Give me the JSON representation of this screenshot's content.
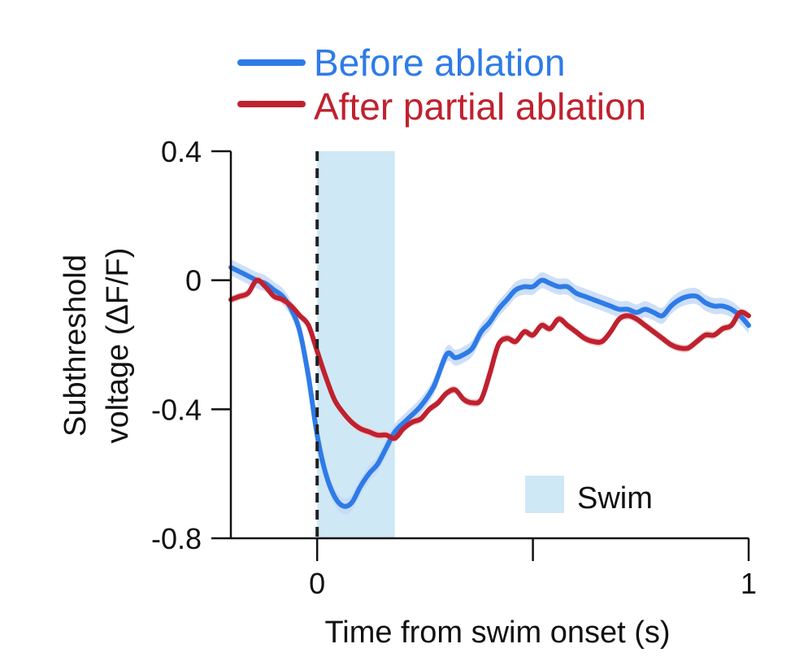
{
  "chart_data": {
    "type": "line",
    "xlabel": "Time from swim onset (s)",
    "ylabel_line1": "Subthreshold",
    "ylabel_line2": "voltage (ΔF/F)",
    "xlim": [
      -0.2,
      1.0
    ],
    "ylim": [
      -0.8,
      0.4
    ],
    "x_ticks": [
      0,
      0.5,
      1
    ],
    "x_tick_labels": [
      "0",
      "",
      "1"
    ],
    "y_ticks": [
      0.4,
      0,
      -0.4,
      -0.8
    ],
    "y_tick_labels": [
      "0.4",
      "0",
      "-0.4",
      "-0.8"
    ],
    "onset_marker_x": 0,
    "swim_window": [
      0,
      0.18
    ],
    "swim_label": "Swim",
    "swim_color": "#cfe8f5",
    "series": [
      {
        "name": "Before ablation",
        "color": "#2e7be8",
        "band_color": "#c6d9f7",
        "x": [
          -0.2,
          -0.17,
          -0.14,
          -0.12,
          -0.1,
          -0.08,
          -0.06,
          -0.04,
          -0.02,
          0.0,
          0.02,
          0.04,
          0.06,
          0.08,
          0.1,
          0.12,
          0.14,
          0.16,
          0.18,
          0.21,
          0.24,
          0.27,
          0.3,
          0.32,
          0.34,
          0.36,
          0.38,
          0.4,
          0.42,
          0.44,
          0.46,
          0.48,
          0.5,
          0.52,
          0.54,
          0.56,
          0.58,
          0.6,
          0.62,
          0.64,
          0.66,
          0.68,
          0.7,
          0.72,
          0.74,
          0.76,
          0.78,
          0.8,
          0.82,
          0.84,
          0.86,
          0.88,
          0.9,
          0.92,
          0.94,
          0.96,
          0.98,
          1.0
        ],
        "y": [
          0.04,
          0.02,
          0.0,
          -0.01,
          -0.03,
          -0.05,
          -0.09,
          -0.16,
          -0.3,
          -0.48,
          -0.6,
          -0.67,
          -0.7,
          -0.69,
          -0.64,
          -0.6,
          -0.57,
          -0.52,
          -0.47,
          -0.43,
          -0.39,
          -0.33,
          -0.23,
          -0.24,
          -0.23,
          -0.21,
          -0.16,
          -0.13,
          -0.09,
          -0.06,
          -0.03,
          -0.02,
          -0.02,
          0.0,
          -0.01,
          -0.02,
          -0.02,
          -0.04,
          -0.05,
          -0.06,
          -0.07,
          -0.08,
          -0.09,
          -0.09,
          -0.1,
          -0.09,
          -0.1,
          -0.11,
          -0.08,
          -0.06,
          -0.05,
          -0.05,
          -0.07,
          -0.08,
          -0.08,
          -0.09,
          -0.11,
          -0.14
        ],
        "band_halfwidth": 0.025
      },
      {
        "name": "After partial ablation",
        "color": "#c0212e",
        "band_color": "#f0c4c7",
        "x": [
          -0.2,
          -0.18,
          -0.16,
          -0.14,
          -0.12,
          -0.1,
          -0.08,
          -0.06,
          -0.04,
          -0.02,
          0.0,
          0.02,
          0.04,
          0.06,
          0.08,
          0.1,
          0.12,
          0.14,
          0.16,
          0.18,
          0.2,
          0.22,
          0.24,
          0.26,
          0.28,
          0.3,
          0.32,
          0.34,
          0.36,
          0.38,
          0.4,
          0.42,
          0.44,
          0.46,
          0.48,
          0.5,
          0.52,
          0.54,
          0.56,
          0.58,
          0.6,
          0.62,
          0.64,
          0.66,
          0.68,
          0.7,
          0.72,
          0.74,
          0.76,
          0.78,
          0.8,
          0.82,
          0.84,
          0.86,
          0.88,
          0.9,
          0.92,
          0.94,
          0.96,
          0.98,
          1.0
        ],
        "y": [
          -0.06,
          -0.05,
          -0.04,
          0.0,
          -0.02,
          -0.05,
          -0.06,
          -0.08,
          -0.11,
          -0.14,
          -0.22,
          -0.3,
          -0.37,
          -0.41,
          -0.44,
          -0.46,
          -0.47,
          -0.48,
          -0.48,
          -0.49,
          -0.46,
          -0.44,
          -0.43,
          -0.4,
          -0.38,
          -0.35,
          -0.34,
          -0.37,
          -0.38,
          -0.37,
          -0.29,
          -0.2,
          -0.18,
          -0.19,
          -0.16,
          -0.17,
          -0.14,
          -0.15,
          -0.12,
          -0.14,
          -0.16,
          -0.18,
          -0.19,
          -0.19,
          -0.16,
          -0.12,
          -0.11,
          -0.12,
          -0.14,
          -0.16,
          -0.18,
          -0.2,
          -0.21,
          -0.21,
          -0.19,
          -0.17,
          -0.17,
          -0.15,
          -0.14,
          -0.1,
          -0.11
        ],
        "band_halfwidth": 0.012
      }
    ]
  }
}
